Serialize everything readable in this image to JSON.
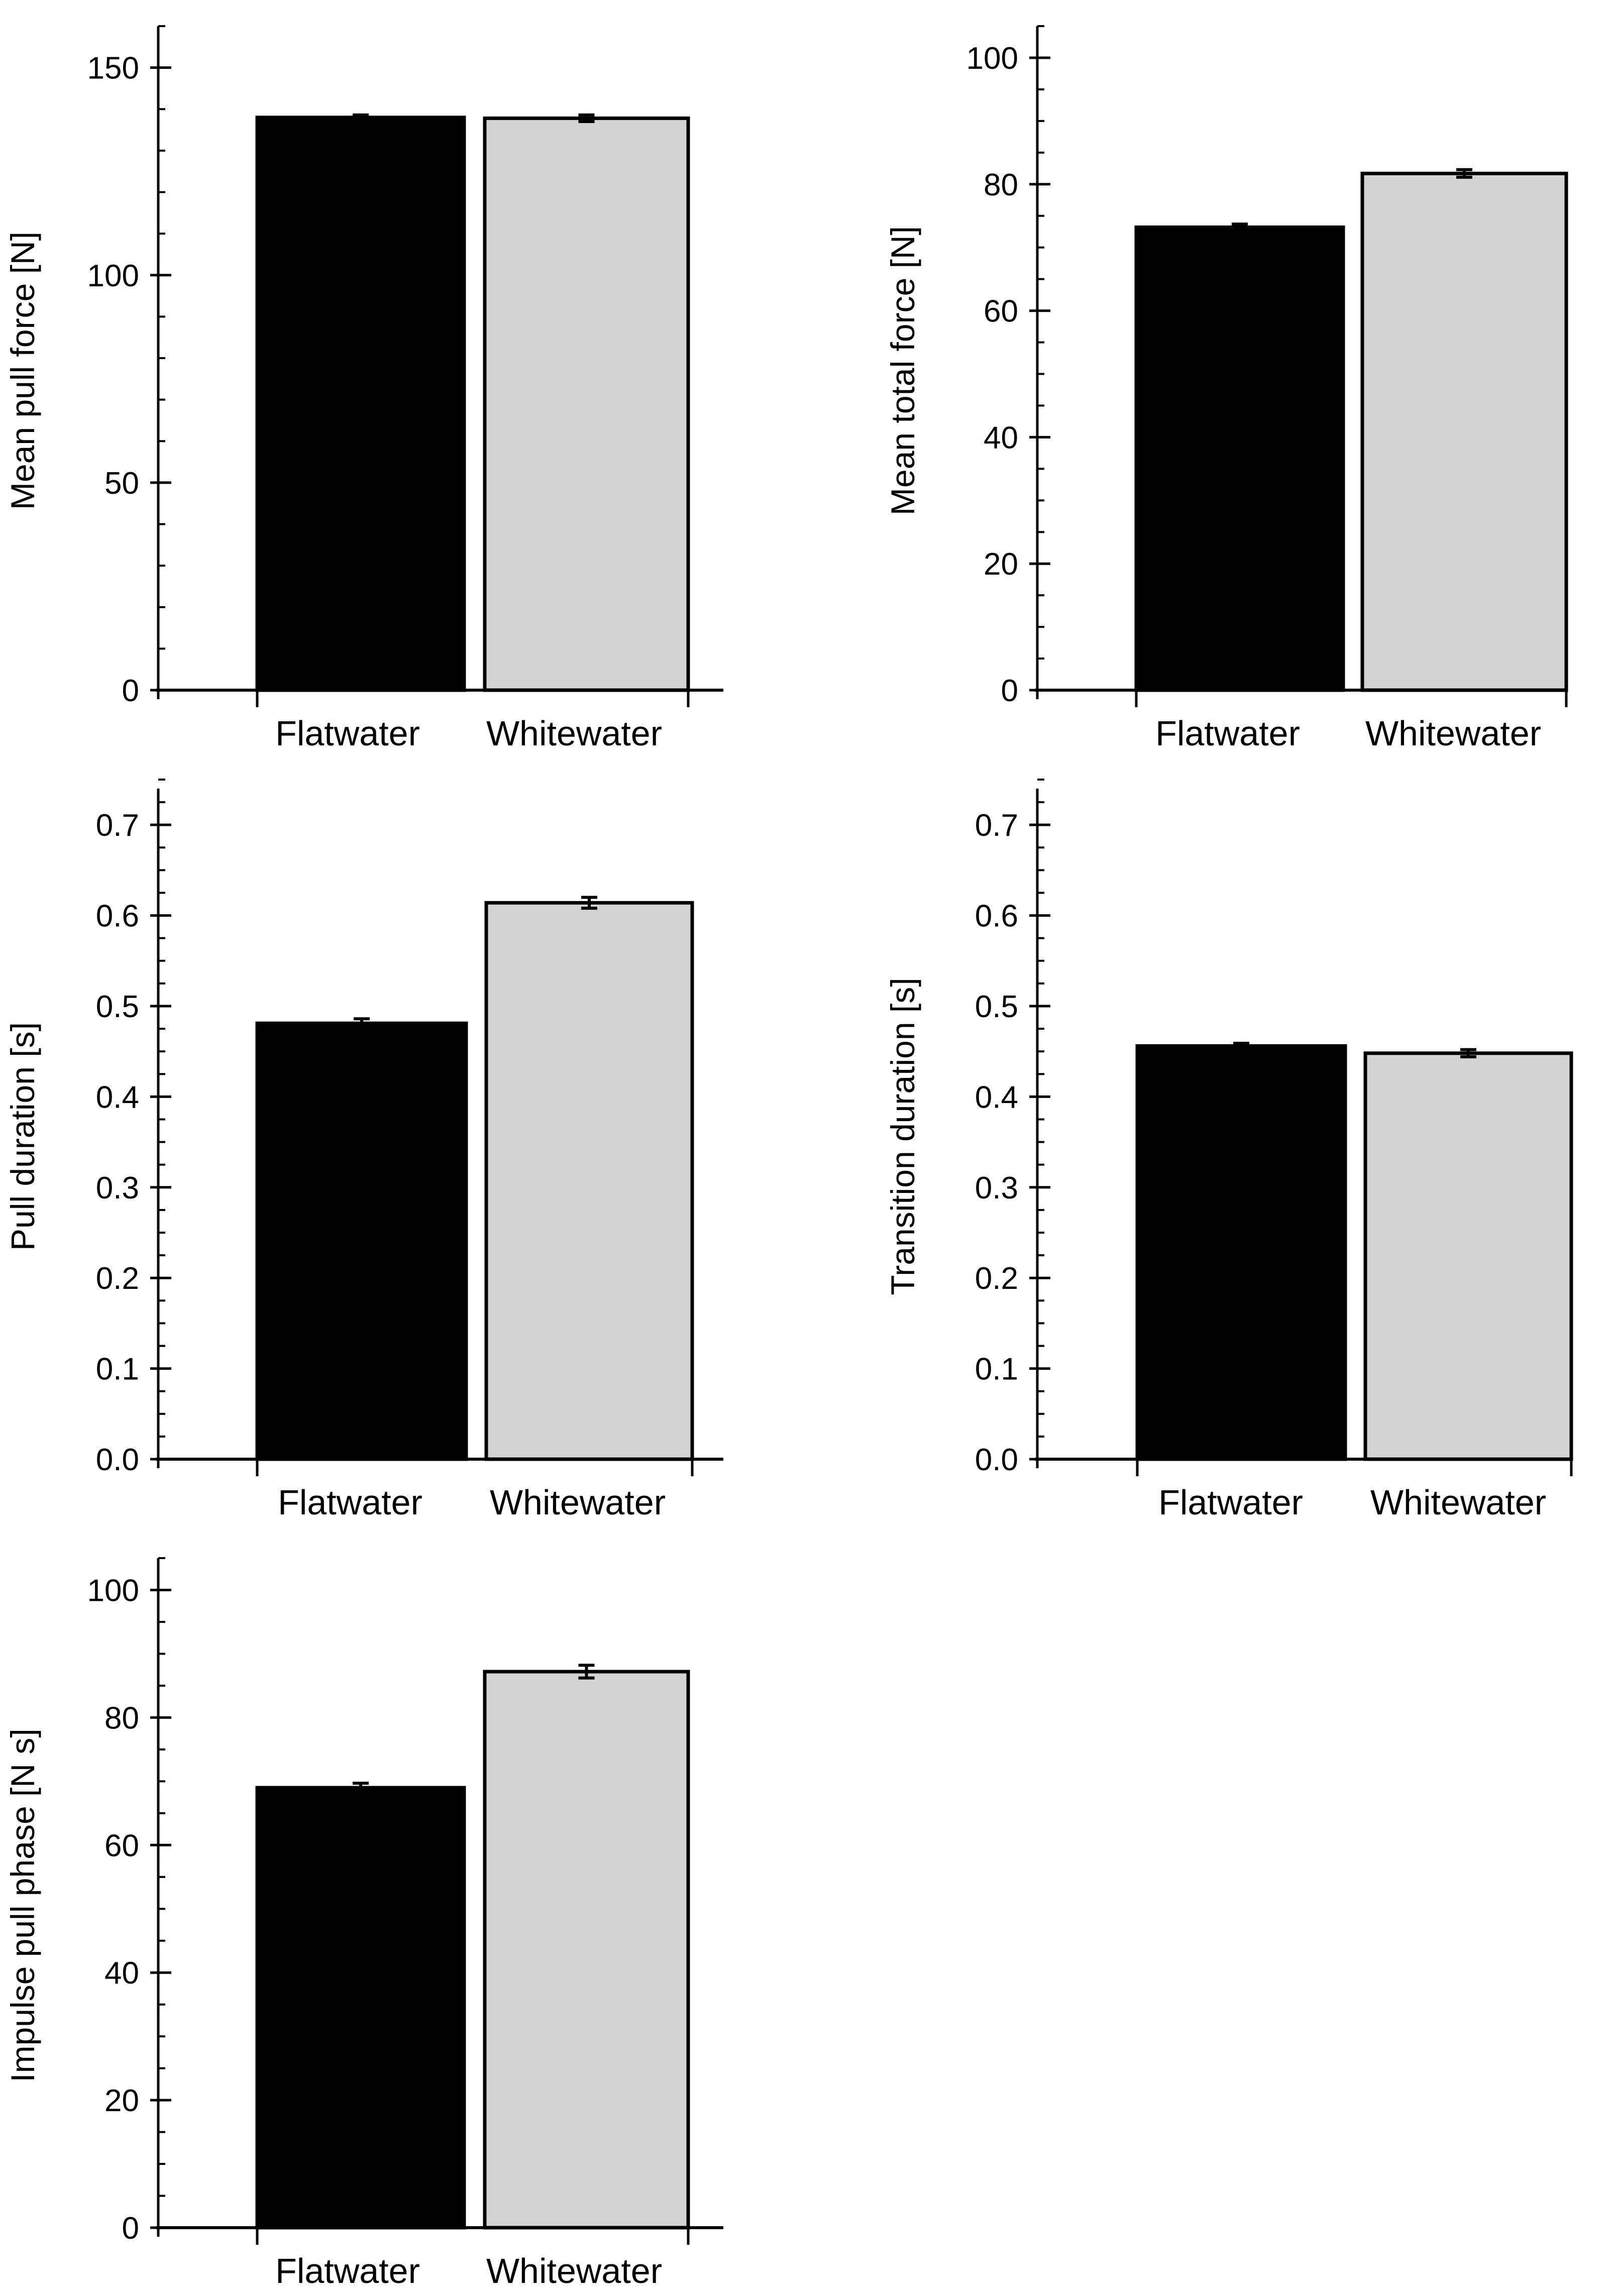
{
  "colors": {
    "flatwater": "#000000",
    "whitewater": "#d3d3d3",
    "axis": "#000000",
    "background": "#ffffff"
  },
  "chart_data": [
    {
      "type": "bar",
      "ylabel": "Mean pull force [N]",
      "categories": [
        "Flatwater",
        "Whitewater"
      ],
      "values": [
        138,
        137.8
      ],
      "errors": [
        0.6,
        0.8
      ],
      "ylim": [
        0,
        160
      ],
      "yticks": [
        0,
        50,
        100,
        150
      ],
      "ytick_labels": [
        "0",
        "50",
        "100",
        "150"
      ],
      "minor_step": 10
    },
    {
      "type": "bar",
      "ylabel": "Mean total force [N]",
      "categories": [
        "Flatwater",
        "Whitewater"
      ],
      "values": [
        73.2,
        81.7
      ],
      "errors": [
        0.5,
        0.6
      ],
      "ylim": [
        0,
        105
      ],
      "yticks": [
        0,
        20,
        40,
        60,
        80,
        100
      ],
      "ytick_labels": [
        "0",
        "20",
        "40",
        "60",
        "80",
        "100"
      ],
      "minor_step": 5
    },
    {
      "type": "bar",
      "ylabel": "Pull duration [s]",
      "categories": [
        "Flatwater",
        "Whitewater"
      ],
      "values": [
        0.481,
        0.614
      ],
      "errors": [
        0.005,
        0.006
      ],
      "ylim": [
        0,
        0.74
      ],
      "yticks": [
        0,
        0.1,
        0.2,
        0.3,
        0.4,
        0.5,
        0.6,
        0.7
      ],
      "ytick_labels": [
        "0.0",
        "0.1",
        "0.2",
        "0.3",
        "0.4",
        "0.5",
        "0.6",
        "0.7"
      ],
      "minor_step": 0.025
    },
    {
      "type": "bar",
      "ylabel": "Transition duration [s]",
      "categories": [
        "Flatwater",
        "Whitewater"
      ],
      "values": [
        0.456,
        0.448
      ],
      "errors": [
        0.003,
        0.004
      ],
      "ylim": [
        0,
        0.74
      ],
      "yticks": [
        0,
        0.1,
        0.2,
        0.3,
        0.4,
        0.5,
        0.6,
        0.7
      ],
      "ytick_labels": [
        "0.0",
        "0.1",
        "0.2",
        "0.3",
        "0.4",
        "0.5",
        "0.6",
        "0.7"
      ],
      "minor_step": 0.025
    },
    {
      "type": "bar",
      "ylabel": "Impulse pull phase [N s]",
      "categories": [
        "Flatwater",
        "Whitewater"
      ],
      "values": [
        69,
        87.2
      ],
      "errors": [
        0.7,
        1.0
      ],
      "ylim": [
        0,
        105
      ],
      "yticks": [
        0,
        20,
        40,
        60,
        80,
        100
      ],
      "ytick_labels": [
        "0",
        "20",
        "40",
        "60",
        "80",
        "100"
      ],
      "minor_step": 5
    }
  ]
}
